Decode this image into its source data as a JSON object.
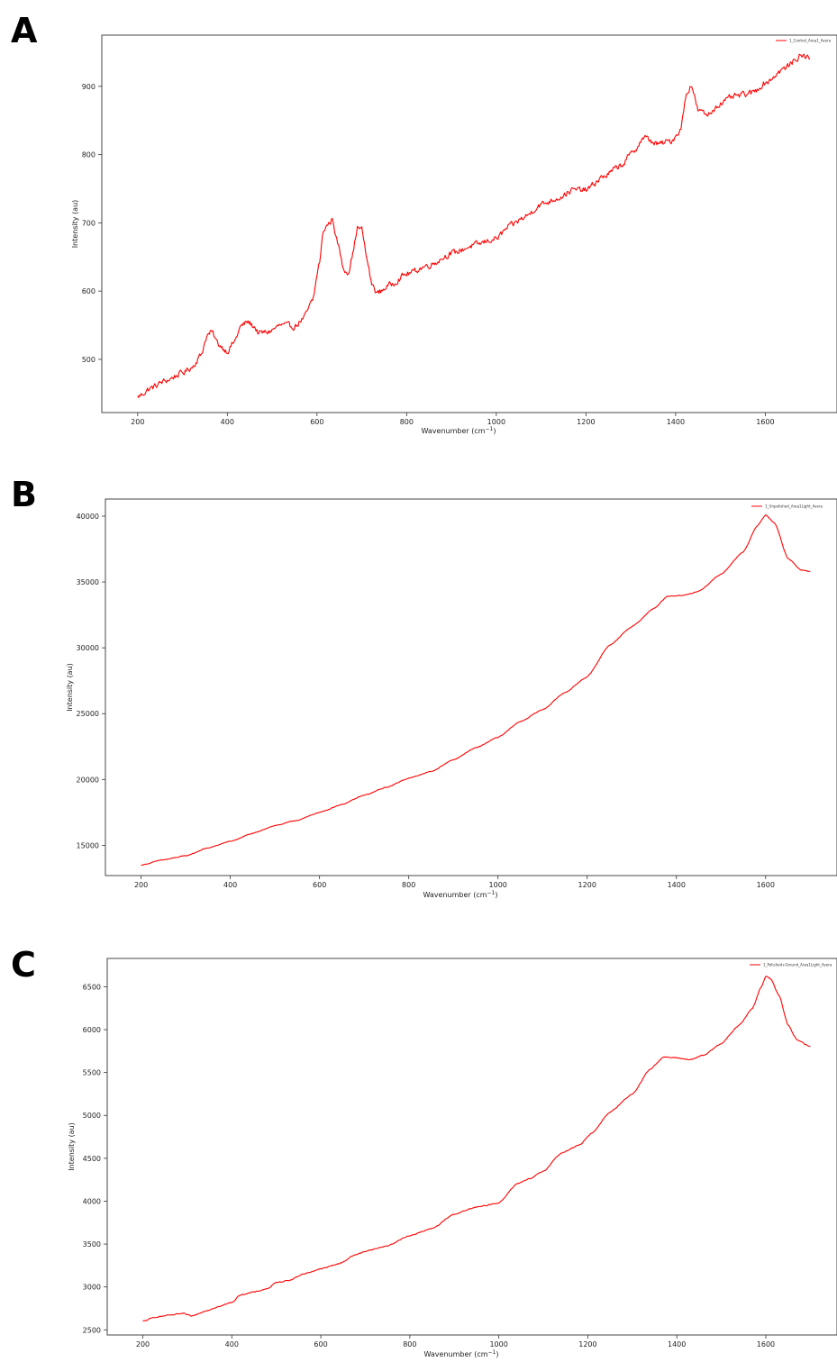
{
  "figure": {
    "panels": [
      {
        "letter": "A",
        "legend": "1_Control_Area1_Avera",
        "chart_data": {
          "type": "line",
          "xlabel": "Wavenumber",
          "xunit": "(cm",
          "xunit_sup": "−1",
          "xunit_close": ")",
          "ylabel": "Intensity (au)",
          "xlim": [
            120,
            1760
          ],
          "ylim": [
            422,
            975
          ],
          "xticks": [
            200,
            400,
            600,
            800,
            1000,
            1200,
            1400,
            1600
          ],
          "yticks": [
            500,
            600,
            700,
            800,
            900
          ],
          "color": "#ff0000",
          "noise": 7,
          "points": [
            [
              200,
              445
            ],
            [
              230,
              458
            ],
            [
              260,
              468
            ],
            [
              300,
              480
            ],
            [
              320,
              488
            ],
            [
              340,
              505
            ],
            [
              355,
              535
            ],
            [
              365,
              540
            ],
            [
              380,
              522
            ],
            [
              400,
              512
            ],
            [
              415,
              525
            ],
            [
              430,
              548
            ],
            [
              445,
              555
            ],
            [
              460,
              548
            ],
            [
              470,
              538
            ],
            [
              490,
              540
            ],
            [
              520,
              550
            ],
            [
              550,
              548
            ],
            [
              570,
              560
            ],
            [
              590,
              585
            ],
            [
              605,
              640
            ],
            [
              615,
              690
            ],
            [
              625,
              698
            ],
            [
              635,
              705
            ],
            [
              645,
              672
            ],
            [
              660,
              632
            ],
            [
              670,
              628
            ],
            [
              680,
              655
            ],
            [
              690,
              693
            ],
            [
              700,
              690
            ],
            [
              712,
              645
            ],
            [
              722,
              610
            ],
            [
              735,
              597
            ],
            [
              760,
              608
            ],
            [
              800,
              625
            ],
            [
              850,
              638
            ],
            [
              900,
              655
            ],
            [
              950,
              667
            ],
            [
              1000,
              677
            ],
            [
              1030,
              695
            ],
            [
              1060,
              707
            ],
            [
              1100,
              727
            ],
            [
              1140,
              737
            ],
            [
              1170,
              748
            ],
            [
              1200,
              748
            ],
            [
              1240,
              768
            ],
            [
              1280,
              785
            ],
            [
              1300,
              800
            ],
            [
              1330,
              825
            ],
            [
              1360,
              815
            ],
            [
              1390,
              820
            ],
            [
              1410,
              835
            ],
            [
              1425,
              890
            ],
            [
              1435,
              903
            ],
            [
              1450,
              865
            ],
            [
              1470,
              858
            ],
            [
              1500,
              875
            ],
            [
              1530,
              885
            ],
            [
              1570,
              890
            ],
            [
              1600,
              905
            ],
            [
              1640,
              925
            ],
            [
              1680,
              945
            ],
            [
              1700,
              942
            ]
          ]
        }
      },
      {
        "letter": "B",
        "legend": "1_Unpolished_Area1Light_Avera",
        "chart_data": {
          "type": "line",
          "xlabel": "Wavenumber",
          "xunit": "(cm",
          "xunit_sup": "−1",
          "xunit_close": ")",
          "ylabel": "Intensity (au)",
          "xlim": [
            120,
            1760
          ],
          "ylim": [
            12700,
            41300
          ],
          "xticks": [
            200,
            400,
            600,
            800,
            1000,
            1200,
            1400,
            1600
          ],
          "yticks": [
            15000,
            20000,
            25000,
            30000,
            35000,
            40000
          ],
          "color": "#ff0000",
          "noise": 40,
          "points": [
            [
              200,
              13500
            ],
            [
              250,
              13900
            ],
            [
              300,
              14200
            ],
            [
              350,
              14800
            ],
            [
              400,
              15300
            ],
            [
              450,
              15900
            ],
            [
              500,
              16500
            ],
            [
              550,
              16900
            ],
            [
              600,
              17500
            ],
            [
              650,
              18100
            ],
            [
              700,
              18800
            ],
            [
              750,
              19400
            ],
            [
              800,
              20100
            ],
            [
              850,
              20600
            ],
            [
              900,
              21500
            ],
            [
              950,
              22400
            ],
            [
              1000,
              23200
            ],
            [
              1050,
              24400
            ],
            [
              1100,
              25300
            ],
            [
              1150,
              26600
            ],
            [
              1200,
              27800
            ],
            [
              1250,
              30200
            ],
            [
              1300,
              31600
            ],
            [
              1350,
              33000
            ],
            [
              1380,
              33900
            ],
            [
              1420,
              34000
            ],
            [
              1450,
              34300
            ],
            [
              1500,
              35600
            ],
            [
              1550,
              37300
            ],
            [
              1580,
              39200
            ],
            [
              1600,
              40100
            ],
            [
              1620,
              39500
            ],
            [
              1650,
              36800
            ],
            [
              1680,
              35900
            ],
            [
              1700,
              35800
            ]
          ]
        }
      },
      {
        "letter": "C",
        "legend": "1_Polished+Ground_Area1Light_Avera",
        "chart_data": {
          "type": "line",
          "xlabel": "Wavenumber",
          "xunit": "(cm",
          "xunit_sup": "−1",
          "xunit_close": ")",
          "ylabel": "Intensity (au)",
          "xlim": [
            120,
            1760
          ],
          "ylim": [
            2440,
            6830
          ],
          "xticks": [
            200,
            400,
            600,
            800,
            1000,
            1200,
            1400,
            1600
          ],
          "yticks": [
            2500,
            3000,
            3500,
            4000,
            4500,
            5000,
            5500,
            6000,
            6500
          ],
          "color": "#ff0000",
          "noise": 9,
          "points": [
            [
              200,
              2600
            ],
            [
              230,
              2650
            ],
            [
              260,
              2670
            ],
            [
              290,
              2690
            ],
            [
              310,
              2660
            ],
            [
              340,
              2720
            ],
            [
              370,
              2770
            ],
            [
              400,
              2820
            ],
            [
              420,
              2910
            ],
            [
              450,
              2940
            ],
            [
              480,
              2980
            ],
            [
              500,
              3050
            ],
            [
              530,
              3080
            ],
            [
              560,
              3150
            ],
            [
              600,
              3210
            ],
            [
              640,
              3270
            ],
            [
              680,
              3380
            ],
            [
              710,
              3430
            ],
            [
              750,
              3480
            ],
            [
              800,
              3600
            ],
            [
              850,
              3680
            ],
            [
              900,
              3850
            ],
            [
              950,
              3930
            ],
            [
              1000,
              3980
            ],
            [
              1040,
              4200
            ],
            [
              1070,
              4260
            ],
            [
              1100,
              4350
            ],
            [
              1140,
              4560
            ],
            [
              1180,
              4650
            ],
            [
              1210,
              4800
            ],
            [
              1250,
              5040
            ],
            [
              1300,
              5250
            ],
            [
              1340,
              5540
            ],
            [
              1370,
              5680
            ],
            [
              1400,
              5670
            ],
            [
              1430,
              5650
            ],
            [
              1460,
              5700
            ],
            [
              1500,
              5840
            ],
            [
              1540,
              6050
            ],
            [
              1570,
              6250
            ],
            [
              1590,
              6500
            ],
            [
              1600,
              6620
            ],
            [
              1610,
              6600
            ],
            [
              1630,
              6400
            ],
            [
              1650,
              6050
            ],
            [
              1670,
              5880
            ],
            [
              1700,
              5800
            ]
          ]
        }
      }
    ]
  }
}
